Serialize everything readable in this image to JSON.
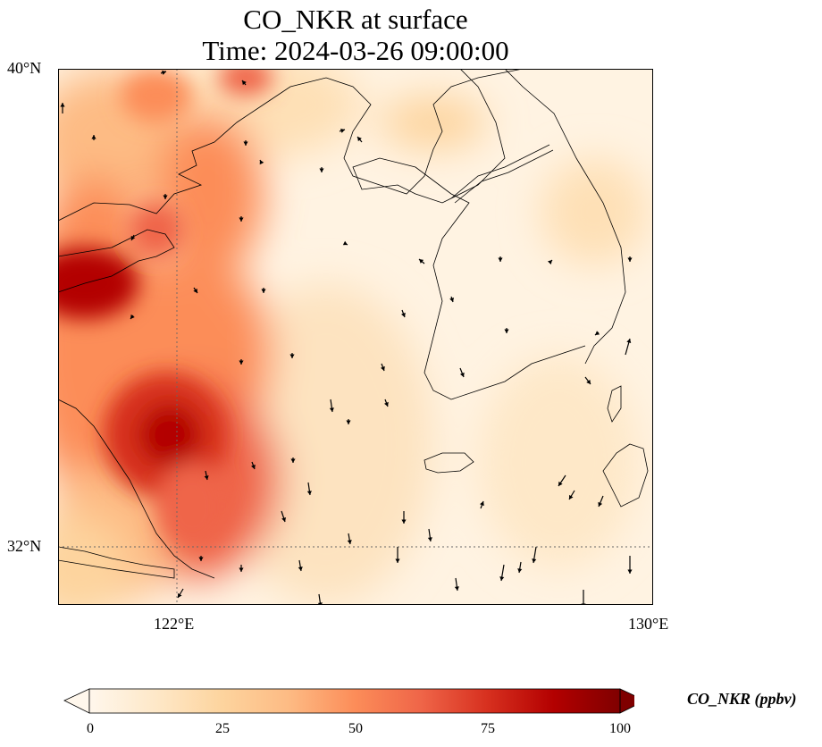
{
  "title": {
    "line1": "CO_NKR at surface",
    "line2": "Time: 2024-03-26 09:00:00"
  },
  "axes": {
    "lat_labels": [
      "40°N",
      "32°N"
    ],
    "lon_labels": [
      "122°E",
      "130°E"
    ],
    "lat_range": [
      31,
      40
    ],
    "lon_range": [
      120,
      130
    ],
    "gridlines": "dotted",
    "lon_gridline": 122,
    "lat_gridline": 32
  },
  "colorbar": {
    "label": "CO_NKR (ppbv)",
    "ticks": [
      "0",
      "25",
      "50",
      "75",
      "100"
    ],
    "range": [
      0,
      100
    ],
    "extend": "both",
    "colormap": "OrRd",
    "colors": [
      "#fff7ec",
      "#fee8c8",
      "#fdd49e",
      "#fdbb84",
      "#fc8d59",
      "#ef6548",
      "#d7301f",
      "#b30000",
      "#7f0000"
    ]
  },
  "field": {
    "variable": "CO_NKR",
    "level": "surface",
    "high_regions": [
      {
        "lon": 120.2,
        "lat": 36.3,
        "value": 95
      },
      {
        "lon": 122.0,
        "lat": 33.8,
        "value": 95
      },
      {
        "lon": 121.3,
        "lat": 39.8,
        "value": 55
      },
      {
        "lon": 121.8,
        "lat": 37.0,
        "value": 65
      }
    ]
  },
  "wind_vectors": "black arrows, mostly southward flow"
}
